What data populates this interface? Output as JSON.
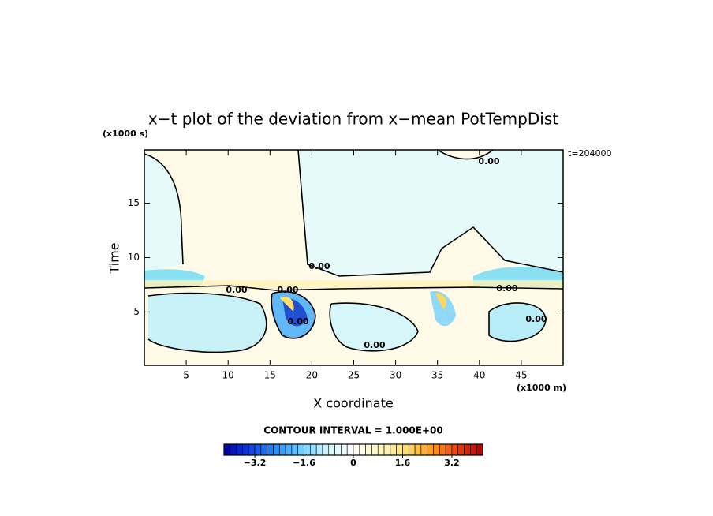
{
  "chart_data": {
    "type": "contour",
    "title": "x−t plot of the deviation from x−mean PotTempDist",
    "x_label": "X coordinate",
    "y_label": "Time",
    "x_unit": "(x1000 m)",
    "y_unit": "(x1000 s)",
    "time_label": "t=204000",
    "contour_interval": "CONTOUR INTERVAL = 1.000E+00",
    "contour_labels": [
      "0.00",
      "0.00",
      "0.00",
      "0.00",
      "0.00",
      "0.00",
      "0.00",
      "0.00"
    ],
    "xlim": [
      0,
      50
    ],
    "ylim": [
      0.1,
      19.9
    ],
    "xticks": [
      5,
      10,
      15,
      20,
      25,
      30,
      35,
      40,
      45
    ],
    "yticks": [
      5,
      10,
      15
    ],
    "colorbar_lim": [
      -4.2,
      4.2
    ],
    "colorbar_ticks": [
      {
        "value": -3.2,
        "label": "−3.2"
      },
      {
        "value": -1.6,
        "label": "−1.6"
      },
      0,
      1.6,
      {
        "value": 3.2,
        "label": "3.2"
      }
    ],
    "colormap": [
      "#0000a0",
      "#1040e0",
      "#2a8cff",
      "#70d0ff",
      "#d0f6ff",
      "#ffffff",
      "#fff8c8",
      "#ffe070",
      "#ffa020",
      "#f04010",
      "#b00000"
    ]
  }
}
